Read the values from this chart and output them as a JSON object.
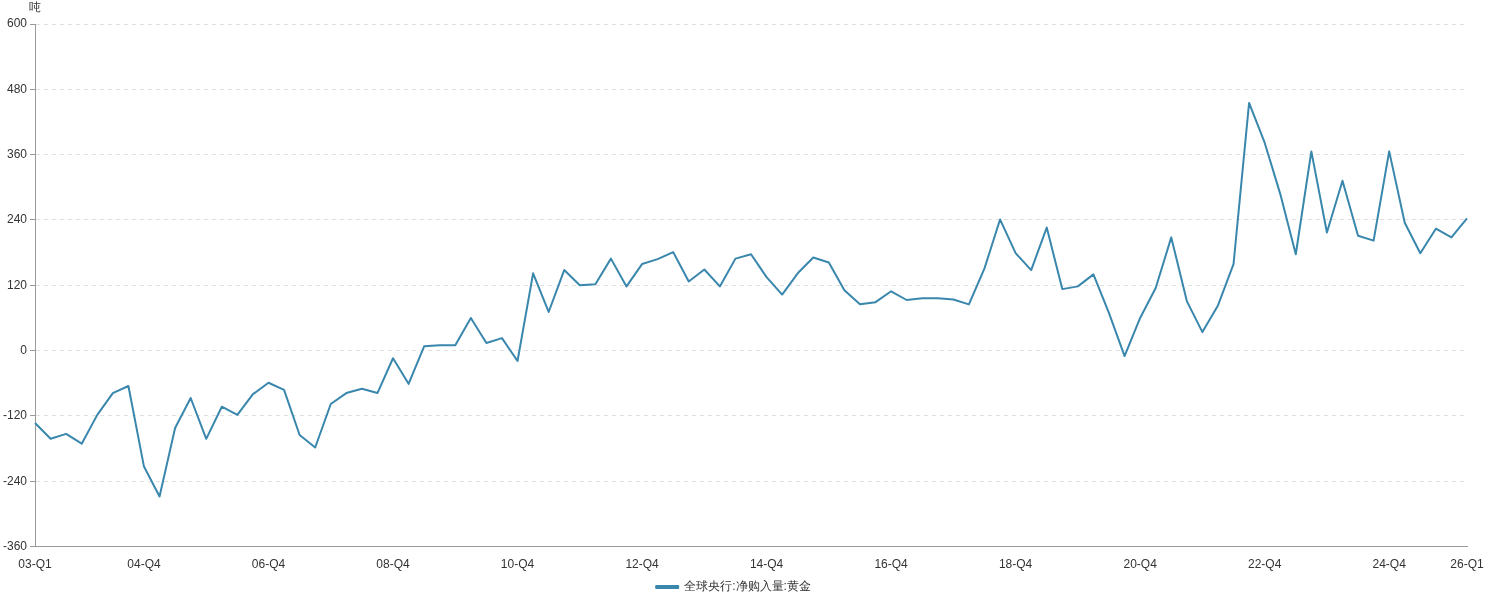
{
  "chart_data": {
    "type": "line",
    "ylabel": "吨",
    "categories": [
      "03-Q1",
      null,
      null,
      null,
      null,
      null,
      null,
      "04-Q4",
      null,
      null,
      null,
      null,
      null,
      null,
      null,
      "06-Q4",
      null,
      null,
      null,
      null,
      null,
      null,
      null,
      "08-Q4",
      null,
      null,
      null,
      null,
      null,
      null,
      null,
      "10-Q4",
      null,
      null,
      null,
      null,
      null,
      null,
      null,
      "12-Q4",
      null,
      null,
      null,
      null,
      null,
      null,
      null,
      "14-Q4",
      null,
      null,
      null,
      null,
      null,
      null,
      null,
      "16-Q4",
      null,
      null,
      null,
      null,
      null,
      null,
      null,
      "18-Q4",
      null,
      null,
      null,
      null,
      null,
      null,
      null,
      "20-Q4",
      null,
      null,
      null,
      null,
      null,
      null,
      null,
      "22-Q4",
      null,
      null,
      null,
      null,
      null,
      null,
      null,
      "24-Q4",
      null,
      null,
      null,
      null,
      "26-Q1"
    ],
    "series": [
      {
        "name": "全球央行:净购入量:黄金",
        "color": "#3a87ad",
        "values": [
          -133,
          -162,
          -153,
          -171,
          -118,
          -78,
          -65,
          -213,
          -268,
          -142,
          -87,
          -162,
          -103,
          -118,
          -80,
          -59,
          -72,
          -155,
          -178,
          -98,
          -78,
          -70,
          -78,
          -14,
          -61,
          8,
          10,
          10,
          60,
          14,
          23,
          -19,
          142,
          71,
          148,
          120,
          122,
          169,
          118,
          159,
          168,
          181,
          127,
          149,
          118,
          169,
          177,
          135,
          103,
          142,
          171,
          162,
          111,
          85,
          89,
          109,
          93,
          96,
          96,
          94,
          85,
          151,
          241,
          179,
          148,
          226,
          113,
          118,
          140,
          69,
          -10,
          60,
          115,
          208,
          91,
          34,
          83,
          159,
          455,
          382,
          288,
          177,
          366,
          217,
          312,
          211,
          202,
          366,
          235,
          179,
          224,
          208,
          243
        ]
      }
    ],
    "ylim": [
      -360,
      600
    ],
    "yticks": [
      -360,
      -240,
      -120,
      0,
      120,
      240,
      360,
      480,
      600
    ],
    "grid": "y",
    "legend": "bottom",
    "marker": "none",
    "line_style": "solid"
  }
}
